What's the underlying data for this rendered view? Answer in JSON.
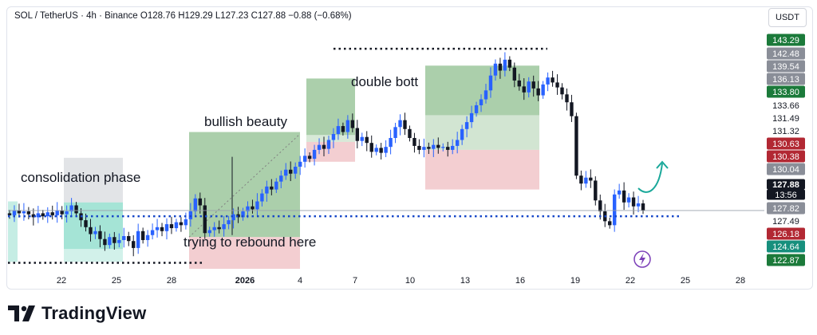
{
  "header": {
    "text": "SOL / TetherUS · 4h · Binance  O128.76  H129.29  L127.23  C127.88  −0.88 (−0.68%)"
  },
  "currency_label": "USDT",
  "brand": {
    "name": "TradingView"
  },
  "colors": {
    "up": "#2962ff",
    "down": "#131722",
    "green_zone": "#8fbf8f",
    "red_zone": "#f2c9cc",
    "teal_zone": "#7fd8c4",
    "gray_zone": "#d6d8dd",
    "arrow": "#1aa89a",
    "dotted_line": "#131722",
    "blue_dotted": "#1848c8"
  },
  "annotations": {
    "consolidation": "consolidation phase",
    "bullish": "bullish beauty",
    "double": "double bott",
    "rebound": "trying to rebound here"
  },
  "chart_data": {
    "type": "candlestick",
    "title": "SOL / TetherUS · 4h · Binance",
    "ohlc_current": {
      "open": 128.76,
      "high": 129.29,
      "low": 127.23,
      "close": 127.88,
      "change": -0.88,
      "change_pct": -0.68
    },
    "x_ticks": [
      "22",
      "25",
      "28",
      "2026",
      "4",
      "7",
      "10",
      "13",
      "16",
      "19",
      "22",
      "25",
      "28"
    ],
    "y_range": [
      122.0,
      145.5
    ],
    "price_labels": [
      {
        "value": "143.29",
        "style": "green"
      },
      {
        "value": "142.48",
        "style": "gray"
      },
      {
        "value": "139.54",
        "style": "gray"
      },
      {
        "value": "136.13",
        "style": "gray"
      },
      {
        "value": "133.80",
        "style": "green"
      },
      {
        "value": "133.66",
        "style": "plain"
      },
      {
        "value": "131.49",
        "style": "plain"
      },
      {
        "value": "131.32",
        "style": "plain"
      },
      {
        "value": "130.63",
        "style": "red"
      },
      {
        "value": "130.38",
        "style": "red"
      },
      {
        "value": "130.04",
        "style": "gray"
      },
      {
        "value": "127.88",
        "style": "current"
      },
      {
        "value": "13:56",
        "style": "current"
      },
      {
        "value": "127.82",
        "style": "gray"
      },
      {
        "value": "127.49",
        "style": "plain"
      },
      {
        "value": "126.18",
        "style": "red"
      },
      {
        "value": "124.64",
        "style": "teal"
      },
      {
        "value": "122.87",
        "style": "green"
      }
    ],
    "current_price": 127.88,
    "support_level": 127.3,
    "lower_level": 122.6,
    "upper_level": 144.2,
    "closes": [
      127.4,
      127.9,
      127.6,
      127.8,
      127.5,
      127.2,
      127.6,
      127.3,
      127.7,
      127.4,
      127.9,
      127.5,
      127.8,
      128.4,
      127.6,
      126.9,
      126.2,
      125.5,
      125.8,
      125.0,
      124.4,
      125.2,
      124.6,
      124.9,
      125.3,
      124.8,
      124.1,
      125.8,
      124.9,
      125.4,
      125.9,
      126.2,
      125.8,
      126.5,
      126.1,
      126.7,
      126.4,
      127.0,
      127.8,
      129.1,
      128.4,
      125.6,
      125.9,
      126.2,
      126.0,
      126.5,
      126.9,
      127.5,
      127.2,
      127.8,
      128.3,
      128.0,
      128.8,
      129.6,
      130.3,
      130.0,
      130.8,
      131.4,
      132.0,
      131.6,
      132.3,
      132.8,
      133.4,
      133.1,
      134.0,
      134.5,
      134.1,
      135.0,
      135.6,
      136.4,
      135.8,
      137.0,
      136.2,
      134.9,
      135.3,
      134.7,
      133.8,
      134.2,
      133.7,
      134.3,
      135.2,
      136.3,
      137.0,
      136.1,
      135.2,
      134.4,
      134.0,
      134.3,
      134.1,
      134.5,
      134.2,
      134.3,
      134.0,
      134.4,
      135.0,
      136.1,
      136.8,
      137.7,
      138.5,
      139.1,
      140.0,
      141.5,
      142.7,
      142.0,
      143.1,
      142.3,
      141.0,
      140.4,
      139.8,
      140.9,
      140.2,
      139.5,
      140.6,
      141.3,
      140.8,
      140.3,
      139.6,
      138.8,
      137.4,
      131.4,
      130.6,
      131.2,
      130.9,
      128.9,
      127.8,
      126.8,
      126.4,
      129.5,
      129.9,
      128.7,
      129.2,
      128.3,
      128.6,
      127.88
    ]
  }
}
